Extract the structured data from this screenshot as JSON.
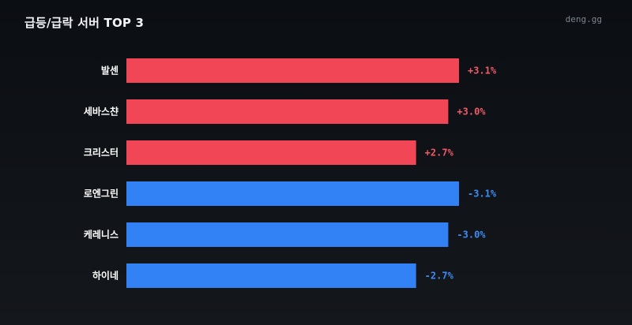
{
  "header": {
    "title": "급등/급락 서버 TOP 3",
    "brand": "deng.gg"
  },
  "colors": {
    "rise": "#f04656",
    "fall": "#3282f6",
    "rise_text": "#f05a66",
    "fall_text": "#3f8cf6"
  },
  "chart_data": {
    "type": "bar",
    "orientation": "horizontal",
    "title": "급등/급락 서버 TOP 3",
    "xlabel": "",
    "ylabel": "",
    "grid": false,
    "items": [
      {
        "category": "발센",
        "value": 3.1,
        "label": "+3.1%",
        "group": "rise"
      },
      {
        "category": "세바스챤",
        "value": 3.0,
        "label": "+3.0%",
        "group": "rise"
      },
      {
        "category": "크리스터",
        "value": 2.7,
        "label": "+2.7%",
        "group": "rise"
      },
      {
        "category": "로엔그린",
        "value": -3.1,
        "label": "-3.1%",
        "group": "fall"
      },
      {
        "category": "케레니스",
        "value": -3.0,
        "label": "-3.0%",
        "group": "fall"
      },
      {
        "category": "하이네",
        "value": -2.7,
        "label": "-2.7%",
        "group": "fall"
      }
    ]
  }
}
